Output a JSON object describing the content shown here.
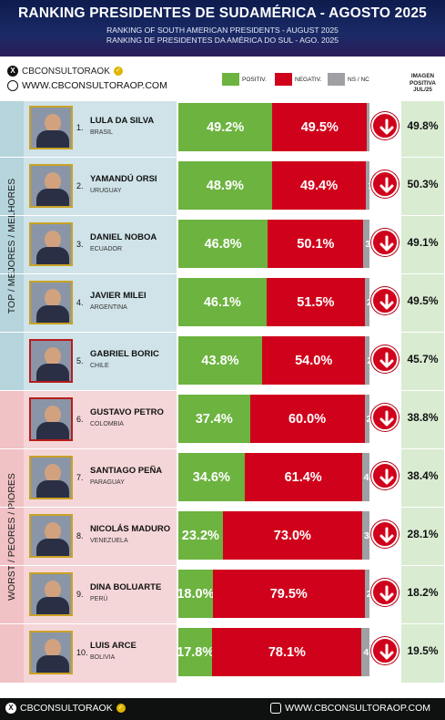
{
  "header": {
    "title": "RANKING PRESIDENTES DE SUDAMÉRICA - AGOSTO 2025",
    "subtitle_en": "RANKING OF SOUTH AMERICAN PRESIDENTS - AUGUST 2025",
    "subtitle_pt": "RANKING DE PRESIDENTES DA AMÉRICA DO SUL - AGO. 2025"
  },
  "social": {
    "handle": "CBCONSULTORAOK",
    "website": "WWW.CBCONSULTORAOP.COM"
  },
  "legend": {
    "positive": "POSITIV.",
    "negative": "NEGATIV.",
    "ns": "NS / NC"
  },
  "imagen_header": [
    "IMAGEN",
    "POSITIVA",
    "JUL/25"
  ],
  "groups": {
    "top": "TOP / MEJORES / MELHORES",
    "worst": "WORST / PEORES / PIORES"
  },
  "colors": {
    "positive": "#6cb33f",
    "negative": "#d0021b",
    "ns": "#9ea0a3",
    "header_bg": "#0d1b4d",
    "top_bg": "#cfe3e8",
    "worst_bg": "#f5d6d8",
    "imagen_bg": "#d9ecd2"
  },
  "chart_data": {
    "type": "bar",
    "title": "RANKING PRESIDENTES DE SUDAMÉRICA - AGOSTO 2025",
    "categories": [
      "LULA DA SILVA",
      "YAMANDÚ ORSI",
      "DANIEL NOBOA",
      "JAVIER MILEI",
      "GABRIEL BORIC",
      "GUSTAVO PETRO",
      "SANTIAGO PEÑA",
      "NICOLÁS MADURO",
      "DINA BOLUARTE",
      "LUIS ARCE"
    ],
    "series": [
      {
        "name": "POSITIV.",
        "values": [
          49.2,
          48.9,
          46.8,
          46.1,
          43.8,
          37.4,
          34.6,
          23.2,
          18.0,
          17.8
        ]
      },
      {
        "name": "NEGATIV.",
        "values": [
          49.5,
          49.4,
          50.1,
          51.5,
          54.0,
          60.0,
          61.4,
          73.0,
          79.5,
          78.1
        ]
      },
      {
        "name": "NS / NC",
        "values": [
          1.3,
          1.7,
          3.1,
          2.4,
          2.2,
          2.6,
          4.0,
          3.8,
          2.5,
          4.1
        ]
      }
    ],
    "stacked": true,
    "orientation": "horizontal"
  },
  "rows": [
    {
      "rank": "1.",
      "name": "LULA DA SILVA",
      "country": "BRASIL",
      "pos": "49.2%",
      "neg": "49.5%",
      "ns": "1.3",
      "imagen": "49.8%",
      "trend_icon": "arrow-down-icon"
    },
    {
      "rank": "2.",
      "name": "YAMANDÚ ORSI",
      "country": "URUGUAY",
      "pos": "48.9%",
      "neg": "49.4%",
      "ns": "1.7",
      "imagen": "50.3%",
      "trend_icon": "arrow-down-icon"
    },
    {
      "rank": "3.",
      "name": "DANIEL NOBOA",
      "country": "ECUADOR",
      "pos": "46.8%",
      "neg": "50.1%",
      "ns": "3.1",
      "imagen": "49.1%",
      "trend_icon": "arrow-down-icon"
    },
    {
      "rank": "4.",
      "name": "JAVIER MILEI",
      "country": "ARGENTINA",
      "pos": "46.1%",
      "neg": "51.5%",
      "ns": "2.4",
      "imagen": "49.5%",
      "trend_icon": "arrow-down-icon"
    },
    {
      "rank": "5.",
      "name": "GABRIEL BORIC",
      "country": "CHILE",
      "pos": "43.8%",
      "neg": "54.0%",
      "ns": "2.2",
      "imagen": "45.7%",
      "trend_icon": "arrow-down-icon"
    },
    {
      "rank": "6.",
      "name": "GUSTAVO PETRO",
      "country": "COLOMBIA",
      "pos": "37.4%",
      "neg": "60.0%",
      "ns": "2.6",
      "imagen": "38.8%",
      "trend_icon": "arrow-down-icon"
    },
    {
      "rank": "7.",
      "name": "SANTIAGO PEÑA",
      "country": "PARAGUAY",
      "pos": "34.6%",
      "neg": "61.4%",
      "ns": "4.0",
      "imagen": "38.4%",
      "trend_icon": "arrow-down-icon"
    },
    {
      "rank": "8.",
      "name": "NICOLÁS MADURO",
      "country": "VENEZUELA",
      "pos": "23.2%",
      "neg": "73.0%",
      "ns": "3.8",
      "imagen": "28.1%",
      "trend_icon": "arrow-down-icon"
    },
    {
      "rank": "9.",
      "name": "DINA BOLUARTE",
      "country": "PERÚ",
      "pos": "18.0%",
      "neg": "79.5%",
      "ns": "2.5",
      "imagen": "18.2%",
      "trend_icon": "arrow-down-icon"
    },
    {
      "rank": "10.",
      "name": "LUIS ARCE",
      "country": "BOLIVIA",
      "pos": "17.8%",
      "neg": "78.1%",
      "ns": "4.1",
      "imagen": "19.5%",
      "trend_icon": "arrow-down-icon"
    }
  ],
  "footer": {
    "handle": "CBCONSULTORAOK",
    "website": "WWW.CBCONSULTORAOP.COM"
  }
}
